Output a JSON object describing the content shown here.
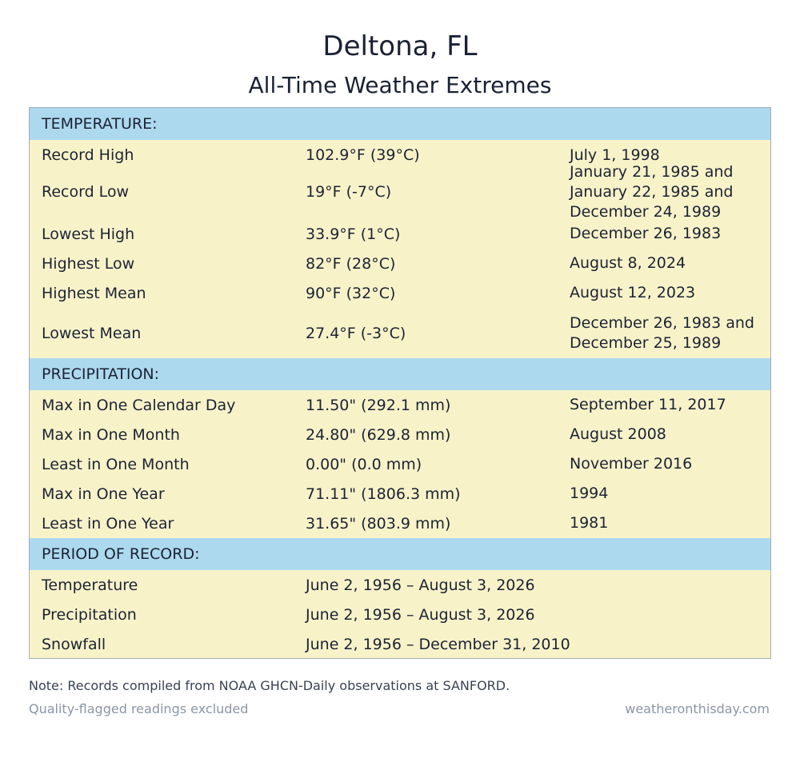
{
  "header": {
    "title": "Deltona, FL",
    "subtitle": "All-Time Weather Extremes"
  },
  "temperature": {
    "heading": "TEMPERATURE:",
    "rows": [
      {
        "label": "Record High",
        "value": "102.9°F (39°C)",
        "date": "July 1, 1998"
      },
      {
        "label": "Record Low",
        "value": "19°F (-7°C)",
        "date": "January 21, 1985 and January 22, 1985 and December 24, 1989"
      },
      {
        "label": "Lowest High",
        "value": "33.9°F (1°C)",
        "date": "December 26, 1983"
      },
      {
        "label": "Highest Low",
        "value": "82°F (28°C)",
        "date": "August 8, 2024"
      },
      {
        "label": "Highest Mean",
        "value": "90°F (32°C)",
        "date": "August 12, 2023"
      },
      {
        "label": "Lowest Mean",
        "value": "27.4°F (-3°C)",
        "date": "December 26, 1983 and December 25, 1989"
      }
    ]
  },
  "precipitation": {
    "heading": "PRECIPITATION:",
    "rows": [
      {
        "label": "Max in One Calendar Day",
        "value": "11.50\" (292.1 mm)",
        "date": "September 11, 2017"
      },
      {
        "label": "Max in One Month",
        "value": "24.80\" (629.8 mm)",
        "date": "August 2008"
      },
      {
        "label": "Least in One Month",
        "value": "0.00\" (0.0 mm)",
        "date": "November 2016"
      },
      {
        "label": "Max in One Year",
        "value": "71.11\" (1806.3 mm)",
        "date": "1994"
      },
      {
        "label": "Least in One Year",
        "value": "31.65\" (803.9 mm)",
        "date": "1981"
      }
    ]
  },
  "period": {
    "heading": "PERIOD OF RECORD:",
    "rows": [
      {
        "label": "Temperature",
        "value": "June 2, 1956 – August 3, 2026"
      },
      {
        "label": "Precipitation",
        "value": "June 2, 1956 – August 3, 2026"
      },
      {
        "label": "Snowfall",
        "value": "June 2, 1956 – December 31, 2010"
      }
    ]
  },
  "footer": {
    "note": "Note: Records compiled from NOAA GHCN-Daily observations at SANFORD.",
    "flag": "Quality-flagged readings excluded",
    "source": "weatheronthisday.com"
  }
}
